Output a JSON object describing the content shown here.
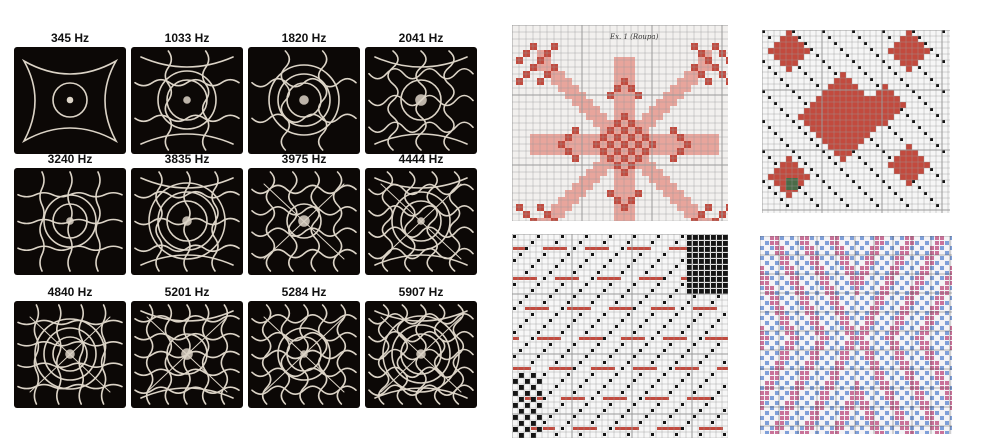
{
  "chladni": {
    "plate_color": "#0c0806",
    "line_color": "#efe6d8",
    "frequencies": [
      "345 Hz",
      "1033 Hz",
      "1820 Hz",
      "2041 Hz",
      "3240 Hz",
      "3835 Hz",
      "3975 Hz",
      "4444 Hz",
      "4840 Hz",
      "5201 Hz",
      "5284 Hz",
      "5907 Hz"
    ]
  },
  "patterns": {
    "top_left_caption": "Ex. 1 (Roupa)",
    "colors": {
      "red": "#c24a3e",
      "pink": "#e8a59c",
      "black": "#151515",
      "blue": "#6a8fd2",
      "magenta": "#c15a88",
      "grid": "#9a9a9a"
    }
  }
}
